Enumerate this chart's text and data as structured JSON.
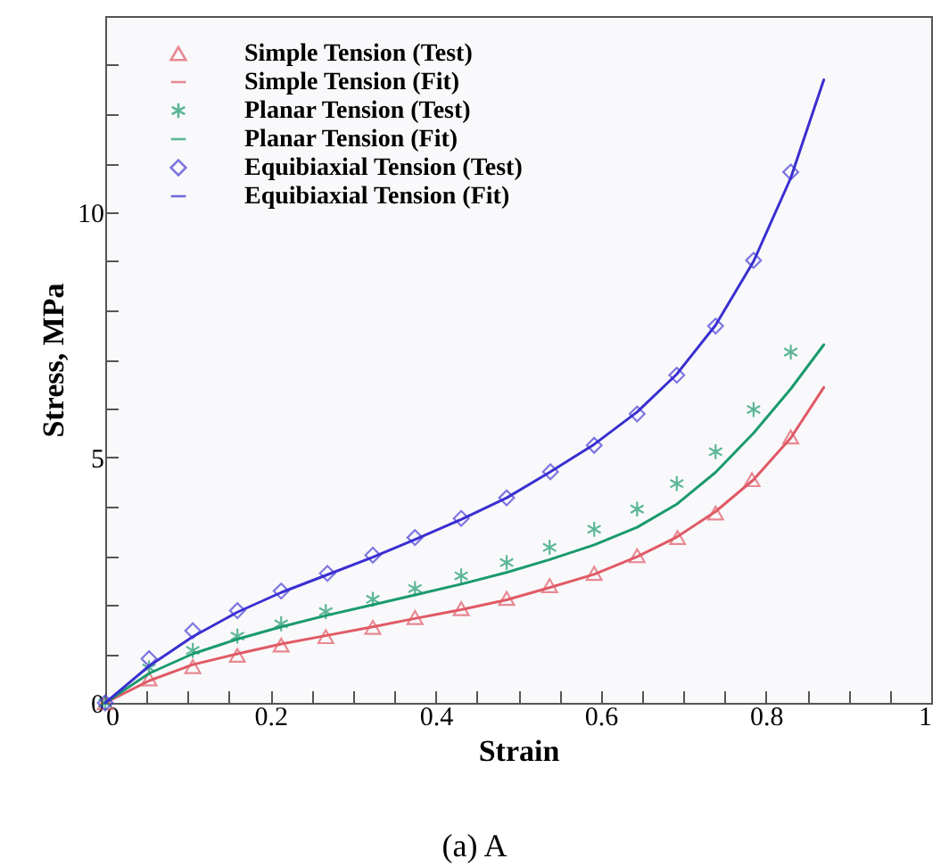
{
  "chart_data": {
    "type": "scatter",
    "xlabel": "Strain",
    "ylabel": "Stress, MPa",
    "annotations": [
      "(a) A"
    ],
    "xlim": [
      0,
      1
    ],
    "ylim": [
      0,
      14
    ],
    "xticks": [
      0,
      {
        "value": 0.05,
        "label": null
      },
      {
        "value": 0.1,
        "label": null
      },
      {
        "value": 0.15,
        "label": null
      },
      0.2,
      {
        "value": 0.25,
        "label": null
      },
      {
        "value": 0.3,
        "label": null
      },
      {
        "value": 0.35,
        "label": null
      },
      0.4,
      {
        "value": 0.45,
        "label": null
      },
      {
        "value": 0.5,
        "label": null
      },
      {
        "value": 0.55,
        "label": null
      },
      0.6,
      {
        "value": 0.65,
        "label": null
      },
      {
        "value": 0.7,
        "label": null
      },
      {
        "value": 0.75,
        "label": null
      },
      0.8,
      {
        "value": 0.85,
        "label": null
      },
      {
        "value": 0.9,
        "label": null
      },
      {
        "value": 0.95,
        "label": null
      },
      1
    ],
    "yticks": [
      0,
      {
        "value": 1,
        "label": null
      },
      {
        "value": 2,
        "label": null
      },
      {
        "value": 3,
        "label": null
      },
      {
        "value": 4,
        "label": null
      },
      5,
      {
        "value": 6,
        "label": null
      },
      {
        "value": 7,
        "label": null
      },
      {
        "value": 8,
        "label": null
      },
      {
        "value": 9,
        "label": null
      },
      10,
      {
        "value": 11,
        "label": null
      },
      {
        "value": 12,
        "label": null
      },
      {
        "value": 13,
        "label": null
      }
    ],
    "grid": false,
    "legend": "top left",
    "series": [
      {
        "name": "Simple Tension (Test)",
        "marker": "triangle",
        "color": "#e05a66",
        "x": [
          0,
          0.053,
          0.106,
          0.16,
          0.213,
          0.267,
          0.324,
          0.375,
          0.431,
          0.486,
          0.538,
          0.592,
          0.644,
          0.693,
          0.739,
          0.783,
          0.83
        ],
        "values": [
          0,
          0.49,
          0.74,
          0.97,
          1.18,
          1.35,
          1.54,
          1.74,
          1.92,
          2.13,
          2.39,
          2.64,
          3.0,
          3.37,
          3.87,
          4.55,
          5.42
        ]
      },
      {
        "name": "Simple Tension (Fit)",
        "type": "line",
        "line_style": "solid",
        "color": "#e05a66",
        "x": [
          0,
          0.053,
          0.106,
          0.16,
          0.213,
          0.267,
          0.324,
          0.375,
          0.431,
          0.486,
          0.538,
          0.592,
          0.644,
          0.692,
          0.739,
          0.785,
          0.83,
          0.87
        ],
        "values": [
          0,
          0.45,
          0.78,
          1.0,
          1.2,
          1.37,
          1.55,
          1.72,
          1.9,
          2.1,
          2.35,
          2.62,
          2.98,
          3.38,
          3.9,
          4.55,
          5.4,
          6.43
        ]
      },
      {
        "name": "Planar Tension (Test)",
        "marker": "cross",
        "color": "#1a9a6e",
        "x": [
          0,
          0.053,
          0.106,
          0.16,
          0.213,
          0.267,
          0.324,
          0.375,
          0.431,
          0.486,
          0.538,
          0.592,
          0.644,
          0.692,
          0.739,
          0.785,
          0.83
        ],
        "values": [
          0,
          0.71,
          1.07,
          1.36,
          1.61,
          1.86,
          2.11,
          2.33,
          2.59,
          2.86,
          3.17,
          3.54,
          3.95,
          4.47,
          5.12,
          5.98,
          7.15
        ]
      },
      {
        "name": "Planar Tension (Fit)",
        "type": "line",
        "line_style": "solid",
        "color": "#1a9a6e",
        "x": [
          0,
          0.053,
          0.106,
          0.16,
          0.213,
          0.267,
          0.324,
          0.375,
          0.431,
          0.486,
          0.538,
          0.592,
          0.644,
          0.692,
          0.739,
          0.785,
          0.83,
          0.87
        ],
        "values": [
          0,
          0.6,
          1.0,
          1.3,
          1.55,
          1.78,
          2.0,
          2.2,
          2.42,
          2.66,
          2.92,
          3.22,
          3.58,
          4.05,
          4.7,
          5.5,
          6.4,
          7.3
        ]
      },
      {
        "name": "Equibiaxial Tension (Test)",
        "marker": "diamond",
        "color": "#4a3fd6",
        "x": [
          0,
          0.053,
          0.106,
          0.16,
          0.213,
          0.269,
          0.324,
          0.375,
          0.431,
          0.486,
          0.539,
          0.592,
          0.644,
          0.692,
          0.739,
          0.785,
          0.83
        ],
        "values": [
          0,
          0.9,
          1.47,
          1.88,
          2.28,
          2.64,
          3.01,
          3.37,
          3.76,
          4.18,
          4.71,
          5.25,
          5.89,
          6.68,
          7.68,
          9.02,
          10.82
        ]
      },
      {
        "name": "Equibiaxial Tension (Fit)",
        "type": "line",
        "line_style": "solid",
        "color": "#3a2fd0",
        "x": [
          0,
          0.053,
          0.106,
          0.16,
          0.213,
          0.267,
          0.324,
          0.375,
          0.431,
          0.486,
          0.538,
          0.592,
          0.644,
          0.692,
          0.739,
          0.785,
          0.83,
          0.87
        ],
        "values": [
          0,
          0.75,
          1.35,
          1.85,
          2.25,
          2.6,
          2.97,
          3.33,
          3.74,
          4.18,
          4.7,
          5.27,
          5.93,
          6.7,
          7.7,
          9.0,
          10.7,
          12.7
        ]
      }
    ]
  }
}
